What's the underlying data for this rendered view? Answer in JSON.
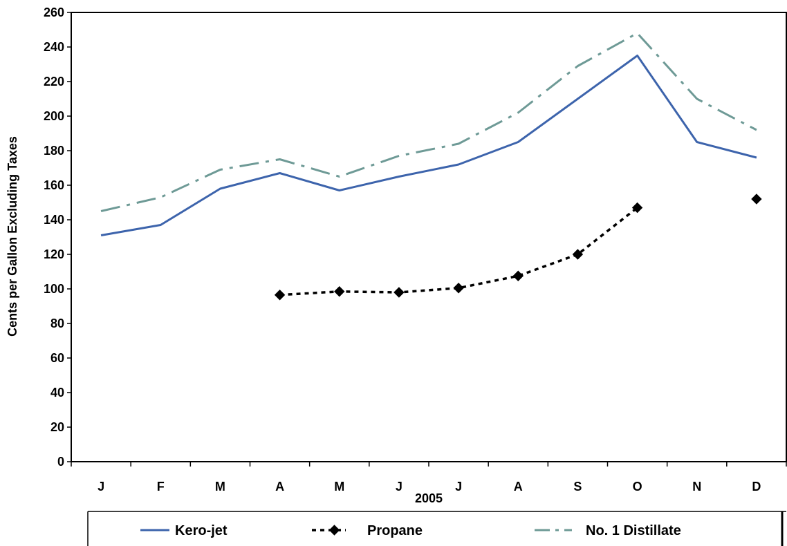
{
  "chart_data": {
    "type": "line",
    "xlabel": "2005",
    "ylabel": "Cents per Gallon Excluding Taxes",
    "ylim": [
      0,
      260
    ],
    "ytick_step": 20,
    "categories": [
      "J",
      "F",
      "M",
      "A",
      "M",
      "J",
      "J",
      "A",
      "S",
      "O",
      "N",
      "D"
    ],
    "grid": false,
    "legend_position": "bottom",
    "series": [
      {
        "name": "Kero-jet",
        "style": "solid",
        "color": "#3d64ac",
        "values": [
          131,
          137,
          158,
          167,
          157,
          165,
          172,
          185,
          210,
          235,
          185,
          176
        ]
      },
      {
        "name": "Propane",
        "style": "dotted-with-diamonds",
        "color": "#000000",
        "values": [
          null,
          null,
          null,
          96.5,
          98.5,
          98,
          100.5,
          107.5,
          120,
          147,
          null,
          152
        ]
      },
      {
        "name": "No. 1 Distillate",
        "style": "dash-dot",
        "color": "#6e9a96",
        "values": [
          145,
          153,
          169,
          175,
          165,
          177,
          184,
          202,
          229,
          248,
          210,
          192
        ]
      }
    ]
  }
}
